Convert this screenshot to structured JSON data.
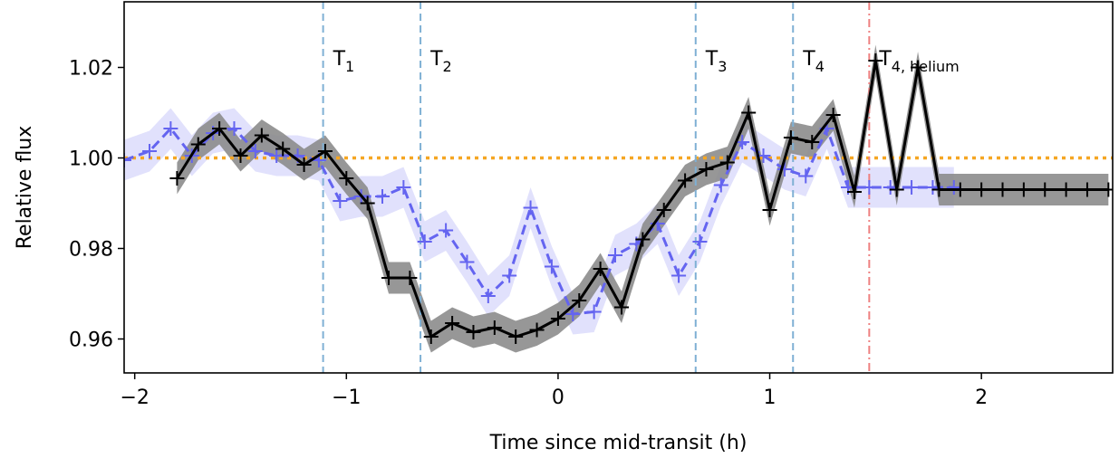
{
  "chart_data": {
    "type": "line",
    "title": "",
    "xlabel": "Time since mid-transit (h)",
    "ylabel": "Relative flux",
    "xlim": [
      -2.05,
      2.62
    ],
    "ylim": [
      0.9525,
      1.0345
    ],
    "x_ticks": [
      -2,
      -1,
      0,
      1,
      2
    ],
    "x_tick_labels": [
      "−2",
      "−1",
      "0",
      "1",
      "2"
    ],
    "y_ticks": [
      0.96,
      0.98,
      1.0,
      1.02
    ],
    "y_tick_labels": [
      "0.96",
      "0.98",
      "1.00",
      "1.02"
    ],
    "grid": false,
    "reference_line": {
      "y": 1.0,
      "color": "#f5a623",
      "style": "dotted"
    },
    "phase_lines": [
      {
        "x": -1.11,
        "label": "T",
        "sub": "1",
        "color": "#7fb0d4",
        "style": "dashed"
      },
      {
        "x": -0.65,
        "label": "T",
        "sub": "2",
        "color": "#7fb0d4",
        "style": "dashed"
      },
      {
        "x": 0.65,
        "label": "T",
        "sub": "3",
        "color": "#7fb0d4",
        "style": "dashed"
      },
      {
        "x": 1.11,
        "label": "T",
        "sub": "4",
        "color": "#7fb0d4",
        "style": "dashed"
      },
      {
        "x": 1.47,
        "label": "T",
        "sub": "4, helium",
        "color": "#ee8080",
        "style": "dashdot"
      }
    ],
    "series": [
      {
        "color": "#6464f0",
        "band_color": "#c8c8fa",
        "style": "dashed",
        "band": 0.0045,
        "x": [
          -2.05,
          -1.93,
          -1.83,
          -1.73,
          -1.63,
          -1.53,
          -1.43,
          -1.33,
          -1.23,
          -1.13,
          -1.03,
          -0.93,
          -0.83,
          -0.73,
          -0.63,
          -0.53,
          -0.43,
          -0.33,
          -0.23,
          -0.13,
          -0.03,
          0.07,
          0.17,
          0.27,
          0.37,
          0.47,
          0.57,
          0.67,
          0.77,
          0.87,
          0.97,
          1.07,
          1.17,
          1.27,
          1.37,
          1.47,
          1.57,
          1.67,
          1.77,
          1.87
        ],
        "y": [
          0.9995,
          1.0015,
          1.0065,
          1.0005,
          1.0055,
          1.0065,
          1.0015,
          1.0005,
          1.0005,
          0.9995,
          0.9905,
          0.9915,
          0.9915,
          0.9935,
          0.9815,
          0.984,
          0.977,
          0.9695,
          0.974,
          0.989,
          0.976,
          0.9655,
          0.966,
          0.9785,
          0.981,
          0.9855,
          0.974,
          0.9815,
          0.994,
          1.0035,
          1.0005,
          0.9975,
          0.996,
          1.0065,
          0.9935,
          0.9935,
          0.9935,
          0.9935,
          0.9935,
          0.9935
        ]
      },
      {
        "color": "#000000",
        "band_color": "#8c8c8c",
        "style": "solid",
        "band": 0.0035,
        "x": [
          -1.8,
          -1.7,
          -1.6,
          -1.5,
          -1.4,
          -1.3,
          -1.2,
          -1.1,
          -1.0,
          -0.9,
          -0.8,
          -0.7,
          -0.6,
          -0.5,
          -0.4,
          -0.3,
          -0.2,
          -0.1,
          0.0,
          0.1,
          0.2,
          0.3,
          0.4,
          0.5,
          0.6,
          0.7,
          0.8,
          0.9,
          1.0,
          1.1,
          1.2,
          1.3,
          1.4,
          1.5,
          1.6,
          1.7,
          1.8,
          1.9,
          2.0,
          2.1,
          2.2,
          2.3,
          2.4,
          2.5,
          2.6
        ],
        "y": [
          0.9955,
          1.003,
          1.0065,
          1.0005,
          1.005,
          1.002,
          0.9985,
          1.0015,
          0.9955,
          0.99,
          0.9735,
          0.9735,
          0.9605,
          0.9635,
          0.9615,
          0.9625,
          0.9605,
          0.962,
          0.9645,
          0.9685,
          0.9755,
          0.967,
          0.982,
          0.9885,
          0.995,
          0.9975,
          0.999,
          1.01,
          0.9885,
          1.0045,
          1.0035,
          1.0095,
          0.9925,
          1.0215,
          0.993,
          1.02,
          0.993,
          0.993,
          0.993,
          0.993,
          0.993,
          0.993,
          0.993,
          0.993,
          0.993
        ]
      }
    ]
  }
}
